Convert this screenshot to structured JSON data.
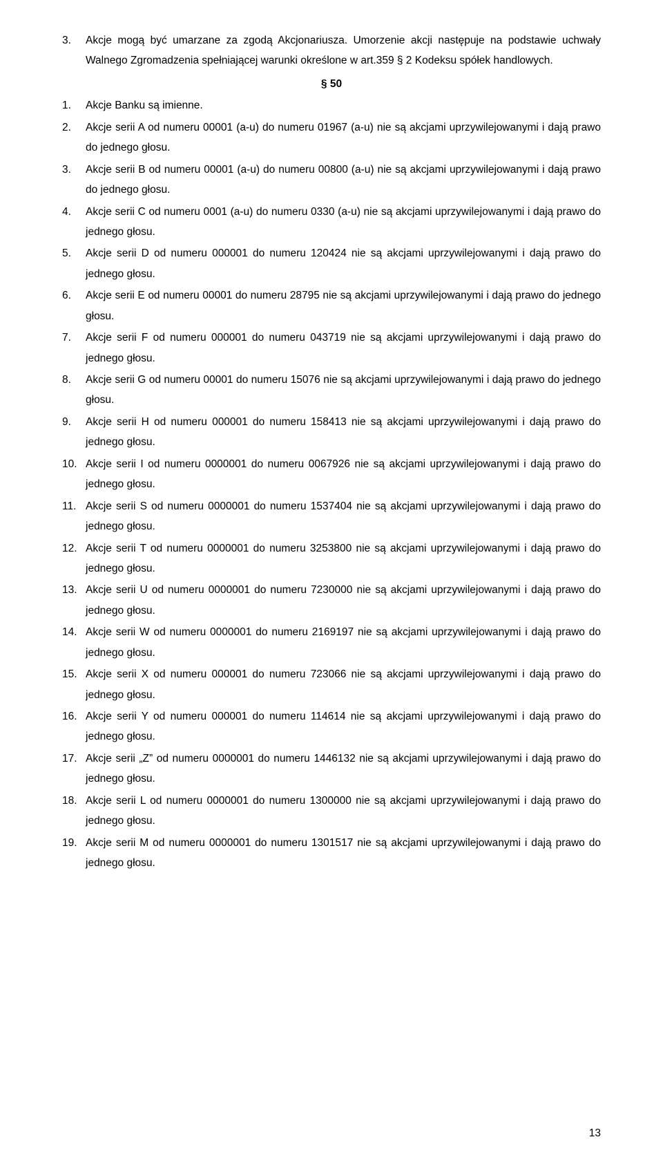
{
  "intro_num": "3.",
  "intro_text": "Akcje mogą być umarzane za zgodą Akcjonariusza. Umorzenie akcji następuje na podstawie uchwały Walnego Zgromadzenia spełniającej warunki określone w art.359 § 2 Kodeksu spółek handlowych.",
  "section_label": "§ 50",
  "items": [
    {
      "n": "1.",
      "t": "Akcje Banku są imienne."
    },
    {
      "n": "2.",
      "t": "Akcje serii A od numeru 00001 (a-u) do numeru 01967 (a-u) nie są akcjami uprzywilejowanymi i dają prawo do jednego głosu."
    },
    {
      "n": "3.",
      "t": "Akcje serii B od numeru 00001 (a-u) do numeru 00800 (a-u) nie są akcjami uprzywilejowanymi i dają prawo do jednego głosu."
    },
    {
      "n": "4.",
      "t": "Akcje serii C od numeru 0001 (a-u) do numeru 0330 (a-u) nie są akcjami uprzywilejowanymi i dają prawo do jednego głosu."
    },
    {
      "n": "5.",
      "t": "Akcje serii D od numeru 000001 do numeru 120424 nie są akcjami uprzywilejowanymi i dają prawo do jednego głosu."
    },
    {
      "n": "6.",
      "t": "Akcje serii E od numeru 00001 do numeru 28795 nie są akcjami uprzywilejowanymi i dają prawo do jednego głosu."
    },
    {
      "n": "7.",
      "t": "Akcje serii F od numeru 000001 do numeru 043719 nie są akcjami uprzywilejowanymi i dają prawo do jednego głosu."
    },
    {
      "n": "8.",
      "t": "Akcje serii G od numeru 00001 do numeru 15076 nie są akcjami uprzywilejowanymi i dają prawo do jednego głosu."
    },
    {
      "n": "9.",
      "t": "Akcje serii H od numeru 000001 do numeru 158413 nie są akcjami uprzywilejowanymi i dają prawo do jednego głosu."
    },
    {
      "n": "10.",
      "t": "Akcje serii I od numeru 0000001 do numeru 0067926 nie są akcjami uprzywilejowanymi i dają prawo do jednego głosu."
    },
    {
      "n": "11.",
      "t": "Akcje serii S od numeru 0000001 do numeru 1537404 nie są akcjami uprzywilejowanymi i dają prawo do jednego głosu."
    },
    {
      "n": "12.",
      "t": "Akcje serii T od numeru 0000001 do numeru 3253800 nie są akcjami uprzywilejowanymi i dają prawo do jednego głosu."
    },
    {
      "n": "13.",
      "t": "Akcje serii U od numeru 0000001 do numeru 7230000 nie są akcjami uprzywilejowanymi i dają prawo do jednego głosu."
    },
    {
      "n": "14.",
      "t": "Akcje serii W od numeru 0000001 do numeru 2169197 nie są akcjami uprzywilejowanymi i dają prawo do jednego głosu."
    },
    {
      "n": "15.",
      "t": "Akcje serii X od numeru 000001 do numeru 723066 nie są akcjami uprzywilejowanymi i dają prawo do jednego głosu."
    },
    {
      "n": "16.",
      "t": "Akcje serii Y od numeru 000001 do numeru 114614 nie są akcjami uprzywilejowanymi i dają prawo do jednego głosu."
    },
    {
      "n": "17.",
      "t": "Akcje serii „Z” od numeru 0000001 do numeru 1446132 nie są akcjami uprzywilejowanymi i dają prawo do jednego głosu."
    },
    {
      "n": "18.",
      "t": "Akcje serii L od numeru 0000001 do numeru 1300000 nie są akcjami uprzywilejowanymi i dają prawo do jednego głosu."
    },
    {
      "n": "19.",
      "t": "Akcje serii M od numeru 0000001 do numeru 1301517 nie są akcjami uprzywilejowanymi i dają prawo do jednego głosu."
    }
  ],
  "page_number": "13"
}
